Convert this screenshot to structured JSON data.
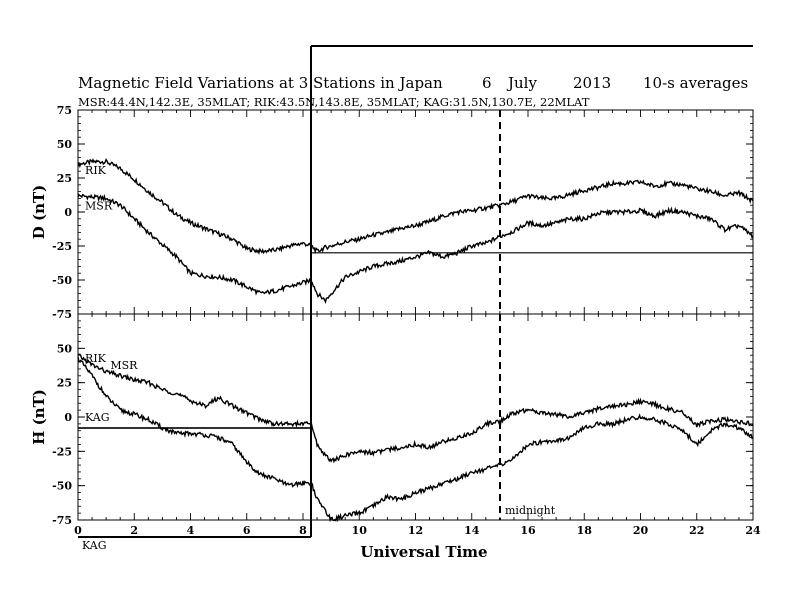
{
  "header": {
    "title_main": "Magnetic Field Variations at 3 Stations in Japan",
    "title_day": "6",
    "title_month": "July",
    "title_year": "2013",
    "title_avg": "10-s averages",
    "subtitle": "MSR:44.4N,142.3E, 35MLAT;  RIK:43.5N,143.8E, 35MLAT;  KAG:31.5N,130.7E, 22MLAT"
  },
  "colors": {
    "line": "#000000",
    "background": "#ffffff"
  },
  "chart_data": [
    {
      "type": "line",
      "panel": "top",
      "ylabel": "D (nT)",
      "ylim": [
        -75,
        75
      ],
      "yticks": [
        "75",
        "50",
        "25",
        "0",
        "-25",
        "-50",
        "-75"
      ],
      "xlim": [
        0,
        24
      ],
      "series": [
        {
          "name": "RIK",
          "x": [
            0,
            0.5,
            1,
            1.5,
            2,
            2.5,
            3,
            3.5,
            4,
            4.5,
            5,
            5.5,
            6,
            6.5,
            7,
            7.5,
            8,
            8.3,
            8.5,
            8.8,
            9,
            9.5,
            10,
            10.5,
            11,
            11.5,
            12,
            12.5,
            13,
            13.5,
            14,
            14.5,
            15,
            15.5,
            16,
            16.5,
            17,
            17.5,
            18,
            18.5,
            19,
            19.5,
            20,
            20.5,
            21,
            21.5,
            22,
            22.5,
            23,
            23.5,
            24
          ],
          "y": [
            35,
            37,
            37,
            32,
            24,
            15,
            7,
            -2,
            -8,
            -12,
            -16,
            -20,
            -27,
            -29,
            -28,
            -25,
            -23,
            -25,
            -29,
            -26,
            -25,
            -22,
            -20,
            -17,
            -15,
            -12,
            -10,
            -7,
            -3,
            0,
            1,
            3,
            5,
            8,
            12,
            10,
            10,
            13,
            16,
            18,
            21,
            21,
            22,
            19,
            21,
            20,
            17,
            15,
            12,
            14,
            8
          ]
        },
        {
          "name": "MSR",
          "x": [
            0,
            0.5,
            1,
            1.5,
            2,
            2.5,
            3,
            3.5,
            4,
            4.5,
            5,
            5.5,
            6,
            6.5,
            7,
            7.5,
            8,
            8.3,
            8.5,
            8.8,
            9,
            9.5,
            10,
            10.5,
            11,
            11.5,
            12,
            12.5,
            13,
            13.5,
            14,
            14.5,
            15,
            15.5,
            16,
            16.5,
            17,
            17.5,
            18,
            18.5,
            19,
            19.5,
            20,
            20.5,
            21,
            21.5,
            22,
            22.5,
            23,
            23.5,
            24
          ],
          "y": [
            12,
            11,
            10,
            5,
            -5,
            -15,
            -24,
            -33,
            -45,
            -47,
            -48,
            -50,
            -55,
            -60,
            -58,
            -55,
            -52,
            -50,
            -60,
            -65,
            -60,
            -48,
            -44,
            -40,
            -38,
            -36,
            -33,
            -30,
            -33,
            -30,
            -25,
            -23,
            -18,
            -14,
            -8,
            -10,
            -8,
            -5,
            -5,
            -1,
            0,
            0,
            1,
            -3,
            1,
            0,
            -3,
            -5,
            -13,
            -10,
            -18
          ]
        }
      ],
      "reference_lines": [
        {
          "from_x": 8.3,
          "to_x": 24,
          "y": -30
        }
      ],
      "series_labels": [
        {
          "text": "RIK",
          "x": 0.25,
          "y": 28
        },
        {
          "text": "MSR",
          "x": 0.25,
          "y": 2
        }
      ]
    },
    {
      "type": "line",
      "panel": "bottom",
      "ylabel": "H (nT)",
      "ylim": [
        -75,
        75
      ],
      "yticks": [
        "50",
        "25",
        "0",
        "-25",
        "-50",
        "-75"
      ],
      "xlabel": "Universal Time",
      "xlim": [
        0,
        24
      ],
      "xticks": [
        "0",
        "2",
        "4",
        "6",
        "8",
        "10",
        "12",
        "14",
        "16",
        "18",
        "20",
        "22",
        "24"
      ],
      "series": [
        {
          "name": "RIK",
          "x": [
            0,
            0.5,
            1,
            1.5,
            2,
            2.5,
            3,
            3.5,
            4,
            4.5,
            5,
            5.5,
            6,
            6.5,
            7,
            7.5,
            8,
            8.3,
            8.5,
            8.8,
            9,
            9.5,
            10,
            10.5,
            11,
            11.5,
            12,
            12.5,
            13,
            13.5,
            14,
            14.5,
            15,
            15.5,
            16,
            16.5,
            17,
            17.5,
            18,
            18.5,
            19,
            19.5,
            20,
            20.5,
            21,
            21.5,
            22,
            22.5,
            23,
            23.5,
            24
          ],
          "y": [
            45,
            38,
            33,
            30,
            27,
            25,
            20,
            17,
            12,
            8,
            14,
            8,
            3,
            -2,
            -5,
            -5,
            -5,
            -5,
            -20,
            -28,
            -32,
            -28,
            -25,
            -26,
            -24,
            -22,
            -20,
            -22,
            -18,
            -15,
            -12,
            -5,
            -3,
            3,
            5,
            3,
            2,
            0,
            3,
            6,
            8,
            9,
            11,
            9,
            6,
            3,
            -6,
            -3,
            -2,
            -4,
            -5
          ]
        },
        {
          "name": "MSR",
          "x": [
            0,
            0.5,
            1,
            1.5,
            2,
            2.5,
            3,
            3.5,
            4,
            4.5,
            5,
            5.5,
            6,
            6.5,
            7,
            7.5,
            8,
            8.3,
            8.5,
            8.8,
            9,
            9.5,
            10,
            10.5,
            11,
            11.5,
            12,
            12.5,
            13,
            13.5,
            14,
            14.5,
            15,
            15.5,
            16,
            16.5,
            17,
            17.5,
            18,
            18.5,
            19,
            19.5,
            20,
            20.5,
            21,
            21.5,
            22,
            22.5,
            23,
            23.5,
            24
          ],
          "y": [
            43,
            30,
            15,
            5,
            2,
            -2,
            -8,
            -12,
            -12,
            -13,
            -15,
            -20,
            -33,
            -42,
            -45,
            -50,
            -48,
            -48,
            -60,
            -68,
            -75,
            -72,
            -70,
            -65,
            -58,
            -60,
            -55,
            -52,
            -48,
            -45,
            -40,
            -38,
            -35,
            -30,
            -20,
            -18,
            -17,
            -15,
            -8,
            -5,
            -5,
            -2,
            0,
            -2,
            -5,
            -10,
            -20,
            -10,
            -5,
            -8,
            -15
          ]
        },
        {
          "name": "KAG",
          "x": [
            0,
            2,
            4,
            6,
            8,
            8.3
          ],
          "y": [
            -8,
            -8,
            -8,
            -8,
            -8,
            -8
          ]
        }
      ],
      "reference_lines": [
        {
          "from_x": 0,
          "to_x": 8.3,
          "y": -8
        }
      ],
      "series_labels": [
        {
          "text": "RIK",
          "x": 0.25,
          "y": 40
        },
        {
          "text": "MSR",
          "x": 1.15,
          "y": 35
        },
        {
          "text": "KAG",
          "x": 0.25,
          "y": -3
        }
      ]
    }
  ],
  "annotations": {
    "event_marker_x": 8.3,
    "midnight_x": 15,
    "midnight_label": "midnight",
    "corner_label": "KAG"
  }
}
